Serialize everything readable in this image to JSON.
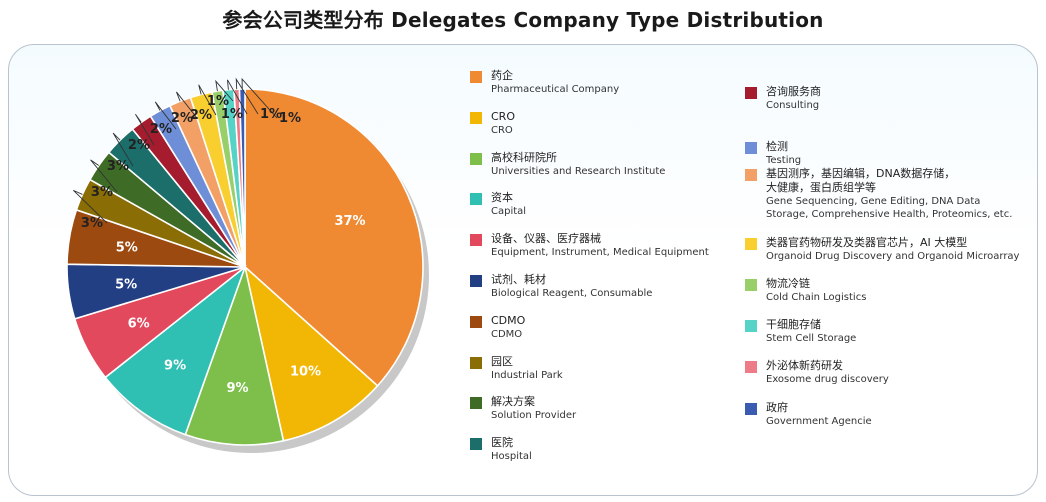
{
  "title": "参会公司类型分布 Delegates Company Type Distribution",
  "chart_data": {
    "type": "pie",
    "title": "参会公司类型分布 Delegates Company Type Distribution",
    "legend_placement": "right",
    "value_unit": "%",
    "slices": [
      {
        "label_zh": "药企",
        "label_en": "Pharmaceutical Company",
        "value": 37,
        "label": "37%",
        "color": "#F08A32"
      },
      {
        "label_zh": "CRO",
        "label_en": "CRO",
        "value": 10,
        "label": "10%",
        "color": "#F2B705"
      },
      {
        "label_zh": "高校科研院所",
        "label_en": "Universities and Research Institute",
        "value": 9,
        "label": "9%",
        "color": "#7DBF4A"
      },
      {
        "label_zh": "资本",
        "label_en": "Capital",
        "value": 9,
        "label": "9%",
        "color": "#2FBFB3"
      },
      {
        "label_zh": "设备、仪器、医疗器械",
        "label_en": "Equipment, Instrument, Medical Equipment",
        "value": 6,
        "label": "6%",
        "color": "#E2495C"
      },
      {
        "label_zh": "试剂、耗材",
        "label_en": "Biological Reagent, Consumable",
        "value": 5,
        "label": "5%",
        "color": "#223F84"
      },
      {
        "label_zh": "CDMO",
        "label_en": "CDMO",
        "value": 5,
        "label": "5%",
        "color": "#9C4A10"
      },
      {
        "label_zh": "园区",
        "label_en": "Industrial Park",
        "value": 3,
        "label": "3%",
        "color": "#8A6D04"
      },
      {
        "label_zh": "解决方案",
        "label_en": "Solution Provider",
        "value": 3,
        "label": "3%",
        "color": "#3E6B26"
      },
      {
        "label_zh": "医院",
        "label_en": "Hospital",
        "value": 3,
        "label": "3%",
        "color": "#1B6E6A"
      },
      {
        "label_zh": "咨询服务商",
        "label_en": "Consulting",
        "value": 2,
        "label": "2%",
        "color": "#A41C2E"
      },
      {
        "label_zh": "检测",
        "label_en": "Testing",
        "value": 2,
        "label": "2%",
        "color": "#6E8FD8"
      },
      {
        "label_zh": "基因测序，基因编辑，DNA数据存储，大健康，蛋白质组学等",
        "label_zh_lines": [
          "基因测序，基因编辑，DNA数据存储，",
          "大健康，蛋白质组学等"
        ],
        "label_en": "Gene Sequencing, Gene Editing, DNA Data Storage, Comprehensive Health, Proteomics, etc.",
        "label_en_lines": [
          "Gene Sequencing, Gene Editing, DNA Data",
          "Storage, Comprehensive Health, Proteomics, etc."
        ],
        "value": 2,
        "label": "2%",
        "color": "#F2A066"
      },
      {
        "label_zh": "类器官药物研发及类器官芯片，AI 大模型",
        "label_en": "Organoid Drug Discovery and Organoid Microarray",
        "value": 2,
        "label": "2%",
        "color": "#F8CF2F"
      },
      {
        "label_zh": "物流冷链",
        "label_en": "Cold Chain Logistics",
        "value": 1,
        "label": "1%",
        "color": "#98CF6A"
      },
      {
        "label_zh": "干细胞存储",
        "label_en": "Stem Cell Storage",
        "value": 1,
        "label": "1%",
        "color": "#55D3C6"
      },
      {
        "label_zh": "外泌体新药研发",
        "label_en": "Exosome drug discovery",
        "value": 0.5,
        "label": "1%",
        "color": "#EE7B88"
      },
      {
        "label_zh": "政府",
        "label_en": "Government Agencie",
        "value": 0.5,
        "label": "1%",
        "color": "#3A5BB0"
      }
    ]
  }
}
